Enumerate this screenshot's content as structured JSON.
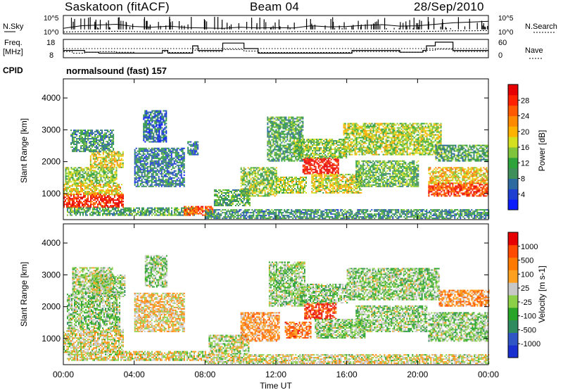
{
  "header": {
    "station": "Saskatoon (fitACF)",
    "beam": "Beam 04",
    "date": "28/Sep/2010"
  },
  "top_panels": {
    "nsky_label": "N.Sky",
    "nsky_ticks": [
      "10^5",
      "10^0"
    ],
    "nsearch_label": "N.Search",
    "nsearch_ticks": [
      "10^5",
      "10^0"
    ],
    "freq_label_line1": "Freq.",
    "freq_label_line2": "[MHz]",
    "freq_ticks": [
      "18",
      "8"
    ],
    "nave_label": "Nave",
    "nave_ticks": [
      "60",
      "0"
    ],
    "cpid_label": "CPID",
    "cpid_value": "normalsound (fast) 157"
  },
  "chart_data": [
    {
      "type": "heatmap",
      "panel": "power",
      "ylabel": "Slant Range [km]",
      "yticks": [
        "4000",
        "3000",
        "2000",
        "1000"
      ],
      "ylim": [
        180,
        4600
      ],
      "xlim_hours": [
        0,
        24
      ],
      "colorbar_label": "Power [dB]",
      "colorbar_ticks": [
        "28",
        "24",
        "20",
        "16",
        "12",
        "8",
        "4"
      ],
      "colorbar_colors": [
        "#0b1cff",
        "#1f3fd0",
        "#2d6aa0",
        "#3f8f5a",
        "#2ea33a",
        "#7fc43a",
        "#d4e01f",
        "#ffb300",
        "#ff8a00",
        "#ff5a00",
        "#ff2200",
        "#e60000"
      ],
      "regions": [
        {
          "t0": 0.0,
          "t1": 3.4,
          "r0": 550,
          "r1": 950,
          "level": 0.9
        },
        {
          "t0": 0.0,
          "t1": 3.3,
          "r0": 950,
          "r1": 1300,
          "level": 0.6
        },
        {
          "t0": 0.1,
          "t1": 3.0,
          "r0": 1300,
          "r1": 1800,
          "level": 0.45
        },
        {
          "t0": 1.5,
          "t1": 3.4,
          "r0": 1800,
          "r1": 2300,
          "level": 0.55
        },
        {
          "t0": 0.4,
          "t1": 2.8,
          "r0": 2300,
          "r1": 3000,
          "level": 0.3
        },
        {
          "t0": 0.2,
          "t1": 7.5,
          "r0": 300,
          "r1": 550,
          "level": 0.35
        },
        {
          "t0": 4.0,
          "t1": 6.8,
          "r0": 1200,
          "r1": 2400,
          "level": 0.25
        },
        {
          "t0": 4.5,
          "t1": 5.8,
          "r0": 2600,
          "r1": 3600,
          "level": 0.2
        },
        {
          "t0": 6.8,
          "t1": 8.4,
          "r0": 300,
          "r1": 600,
          "level": 0.8
        },
        {
          "t0": 7.0,
          "t1": 7.6,
          "r0": 2200,
          "r1": 2600,
          "level": 0.25
        },
        {
          "t0": 8.5,
          "t1": 10.5,
          "r0": 600,
          "r1": 1100,
          "level": 0.35
        },
        {
          "t0": 10.0,
          "t1": 12.0,
          "r0": 900,
          "r1": 1800,
          "level": 0.45
        },
        {
          "t0": 11.5,
          "t1": 13.5,
          "r0": 2000,
          "r1": 3400,
          "level": 0.35
        },
        {
          "t0": 12.0,
          "t1": 13.7,
          "r0": 1000,
          "r1": 1500,
          "level": 0.5
        },
        {
          "t0": 13.5,
          "t1": 15.5,
          "r0": 1600,
          "r1": 2100,
          "level": 0.95
        },
        {
          "t0": 13.0,
          "t1": 16.0,
          "r0": 2100,
          "r1": 2700,
          "level": 0.45
        },
        {
          "t0": 14.0,
          "t1": 16.8,
          "r0": 1000,
          "r1": 1600,
          "level": 0.55
        },
        {
          "t0": 15.8,
          "t1": 21.3,
          "r0": 2200,
          "r1": 3200,
          "level": 0.5
        },
        {
          "t0": 16.5,
          "t1": 20.0,
          "r0": 1200,
          "r1": 2000,
          "level": 0.4
        },
        {
          "t0": 20.6,
          "t1": 24.0,
          "r0": 900,
          "r1": 1300,
          "level": 0.85
        },
        {
          "t0": 20.6,
          "t1": 24.0,
          "r0": 1300,
          "r1": 1800,
          "level": 0.6
        },
        {
          "t0": 21.0,
          "t1": 24.0,
          "r0": 2000,
          "r1": 2500,
          "level": 0.35
        },
        {
          "t0": 8.0,
          "t1": 24.0,
          "r0": 200,
          "r1": 500,
          "level": 0.3
        }
      ]
    },
    {
      "type": "heatmap",
      "panel": "velocity",
      "ylabel": "Slant Range [km]",
      "yticks": [
        "4000",
        "3000",
        "2000",
        "1000"
      ],
      "ylim": [
        180,
        4600
      ],
      "xlim_hours": [
        0,
        24
      ],
      "xticks": [
        "00:00",
        "04:00",
        "08:00",
        "12:00",
        "16:00",
        "20:00",
        "00:00"
      ],
      "xlabel": "Time UT",
      "colorbar_label": "Velocity [m s-1]",
      "colorbar_ticks": [
        "1000",
        "500",
        "100",
        "25",
        "-25",
        "-100",
        "-500",
        "-1000"
      ],
      "colorbar_colors": [
        "#1a2fd0",
        "#2f56c4",
        "#2f8a60",
        "#28a428",
        "#8cd04a",
        "#c8c8c8",
        "#ffa020",
        "#ff7a00",
        "#ff4a00",
        "#e60000"
      ],
      "regions": [
        {
          "t0": 0.0,
          "t1": 3.4,
          "r0": 550,
          "r1": 1300,
          "level": 0.55
        },
        {
          "t0": 0.2,
          "t1": 3.2,
          "r0": 1300,
          "r1": 2400,
          "level": 0.45
        },
        {
          "t0": 1.6,
          "t1": 3.5,
          "r0": 2300,
          "r1": 3000,
          "level": 0.45
        },
        {
          "t0": 0.5,
          "t1": 2.8,
          "r0": 2400,
          "r1": 3200,
          "level": 0.5
        },
        {
          "t0": 0.2,
          "t1": 8.0,
          "r0": 300,
          "r1": 600,
          "level": 0.55
        },
        {
          "t0": 4.0,
          "t1": 6.8,
          "r0": 1200,
          "r1": 2400,
          "level": 0.6
        },
        {
          "t0": 4.6,
          "t1": 5.8,
          "r0": 2600,
          "r1": 3600,
          "level": 0.45
        },
        {
          "t0": 8.2,
          "t1": 10.5,
          "r0": 500,
          "r1": 1100,
          "level": 0.5
        },
        {
          "t0": 10.0,
          "t1": 12.2,
          "r0": 900,
          "r1": 1800,
          "level": 0.7
        },
        {
          "t0": 11.6,
          "t1": 13.6,
          "r0": 2000,
          "r1": 3400,
          "level": 0.45
        },
        {
          "t0": 12.5,
          "t1": 14.0,
          "r0": 1000,
          "r1": 1500,
          "level": 0.75
        },
        {
          "t0": 13.6,
          "t1": 15.4,
          "r0": 1600,
          "r1": 2100,
          "level": 0.9
        },
        {
          "t0": 13.2,
          "t1": 16.0,
          "r0": 2100,
          "r1": 2700,
          "level": 0.45
        },
        {
          "t0": 14.2,
          "t1": 17.0,
          "r0": 1000,
          "r1": 1600,
          "level": 0.45
        },
        {
          "t0": 16.0,
          "t1": 21.2,
          "r0": 2200,
          "r1": 3200,
          "level": 0.45
        },
        {
          "t0": 16.5,
          "t1": 20.5,
          "r0": 1200,
          "r1": 2000,
          "level": 0.45
        },
        {
          "t0": 20.6,
          "t1": 24.0,
          "r0": 900,
          "r1": 1800,
          "level": 0.45
        },
        {
          "t0": 21.2,
          "t1": 24.0,
          "r0": 2000,
          "r1": 2500,
          "level": 0.7
        },
        {
          "t0": 8.0,
          "t1": 24.0,
          "r0": 200,
          "r1": 500,
          "level": 0.55
        }
      ]
    },
    {
      "type": "line",
      "panel": "nsky_nsearch",
      "x_hours": [
        0,
        1,
        2,
        3,
        4,
        5,
        6,
        7,
        8,
        9,
        10,
        11,
        12,
        13,
        14,
        15,
        16,
        17,
        18,
        19,
        20,
        21,
        22,
        23,
        24
      ],
      "nsky_log": [
        1.5,
        2.2,
        2.4,
        2.6,
        2.0,
        1.8,
        2.1,
        1.7,
        1.6,
        1.5,
        1.8,
        1.6,
        1.7,
        1.6,
        2.2,
        1.9,
        2.0,
        2.3,
        2.5,
        2.1,
        2.2,
        2.6,
        3.0,
        3.2,
        3.4
      ],
      "nsearch_log": [
        0.5,
        0.6,
        0.6,
        0.7,
        0.6,
        0.5,
        0.6,
        0.5,
        0.5,
        0.5,
        0.6,
        0.5,
        0.5,
        0.6,
        0.6,
        0.5,
        0.6,
        0.6,
        0.7,
        0.6,
        0.6,
        0.7,
        0.8,
        0.8,
        0.9
      ]
    },
    {
      "type": "line",
      "panel": "freq_nave",
      "x_hours": [
        0,
        0.5,
        1.2,
        2.0,
        3.0,
        4.0,
        5.6,
        5.9,
        7.3,
        7.6,
        9.0,
        9.6,
        10.2,
        11.0,
        13.0,
        16.3,
        19.0,
        20.3,
        20.5,
        21.0,
        22.0,
        24.0
      ],
      "freq_mhz": [
        12.0,
        12.0,
        11.0,
        10.5,
        10.5,
        10.5,
        12.0,
        10.5,
        14.5,
        12.0,
        16.0,
        16.0,
        13.0,
        10.5,
        10.5,
        12.0,
        11.0,
        12.0,
        14.5,
        16.5,
        12.0,
        12.0
      ],
      "nave": [
        20,
        15,
        18,
        20,
        18,
        15,
        20,
        17,
        25,
        20,
        27,
        27,
        22,
        17,
        17,
        20,
        18,
        20,
        25,
        28,
        20,
        20
      ]
    }
  ]
}
